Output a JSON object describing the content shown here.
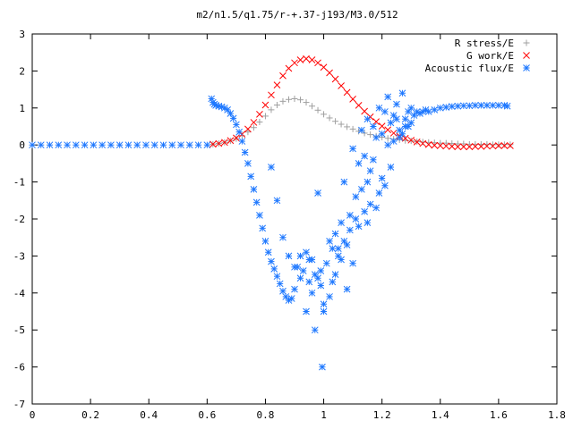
{
  "chart_data": {
    "type": "scatter",
    "title": "m2/n1.5/q1.75/r-+.37-j193/M3.0/512",
    "xlabel": "",
    "ylabel": "",
    "xlim": [
      0,
      1.8
    ],
    "ylim": [
      -7,
      3
    ],
    "x_ticks": [
      0,
      0.2,
      0.4,
      0.6,
      0.8,
      1,
      1.2,
      1.4,
      1.6,
      1.8
    ],
    "x_tick_labels": [
      "0",
      "0.2",
      "0.4",
      "0.6",
      "0.8",
      "1",
      "1.2",
      "1.4",
      "1.6",
      "1.8"
    ],
    "y_ticks": [
      3,
      2,
      1,
      0,
      -1,
      -2,
      -3,
      -4,
      -5,
      -6,
      -7
    ],
    "y_tick_labels": [
      "3",
      "2",
      "1",
      "0",
      "-1",
      "-2",
      "-3",
      "-4",
      "-5",
      "-6",
      "-7"
    ],
    "grid": false,
    "legend_position": "top-right",
    "series": [
      {
        "name": "R stress/E",
        "marker": "plus",
        "color": "#a0a0a0",
        "x": [
          0.62,
          0.64,
          0.66,
          0.68,
          0.7,
          0.72,
          0.74,
          0.76,
          0.78,
          0.8,
          0.82,
          0.84,
          0.86,
          0.88,
          0.9,
          0.92,
          0.94,
          0.96,
          0.98,
          1.0,
          1.02,
          1.04,
          1.06,
          1.08,
          1.1,
          1.12,
          1.14,
          1.16,
          1.18,
          1.2,
          1.22,
          1.24,
          1.26,
          1.28,
          1.3,
          1.32,
          1.34,
          1.36,
          1.38,
          1.4,
          1.42,
          1.44,
          1.46,
          1.48,
          1.5,
          1.52,
          1.54,
          1.56,
          1.58,
          1.6,
          1.62,
          1.64
        ],
        "y": [
          0.02,
          0.04,
          0.07,
          0.11,
          0.17,
          0.25,
          0.35,
          0.47,
          0.62,
          0.78,
          0.95,
          1.08,
          1.18,
          1.23,
          1.25,
          1.22,
          1.15,
          1.05,
          0.94,
          0.83,
          0.73,
          0.64,
          0.56,
          0.49,
          0.43,
          0.37,
          0.32,
          0.28,
          0.24,
          0.21,
          0.18,
          0.16,
          0.14,
          0.12,
          0.11,
          0.09,
          0.08,
          0.07,
          0.06,
          0.05,
          0.05,
          0.04,
          0.03,
          0.03,
          0.02,
          0.02,
          0.02,
          0.02,
          0.01,
          0.01,
          0.01,
          0.01
        ]
      },
      {
        "name": "G work/E",
        "marker": "cross",
        "color": "#ff0000",
        "x": [
          0.62,
          0.64,
          0.66,
          0.68,
          0.7,
          0.72,
          0.74,
          0.76,
          0.78,
          0.8,
          0.82,
          0.84,
          0.86,
          0.88,
          0.9,
          0.92,
          0.94,
          0.96,
          0.98,
          1.0,
          1.02,
          1.04,
          1.06,
          1.08,
          1.1,
          1.12,
          1.14,
          1.16,
          1.18,
          1.2,
          1.22,
          1.24,
          1.26,
          1.28,
          1.3,
          1.32,
          1.34,
          1.36,
          1.38,
          1.4,
          1.42,
          1.44,
          1.46,
          1.48,
          1.5,
          1.52,
          1.54,
          1.56,
          1.58,
          1.6,
          1.62,
          1.64
        ],
        "y": [
          0.02,
          0.04,
          0.07,
          0.12,
          0.19,
          0.29,
          0.43,
          0.61,
          0.83,
          1.08,
          1.35,
          1.62,
          1.87,
          2.07,
          2.22,
          2.3,
          2.33,
          2.3,
          2.22,
          2.1,
          1.95,
          1.78,
          1.6,
          1.42,
          1.24,
          1.07,
          0.91,
          0.76,
          0.63,
          0.51,
          0.41,
          0.32,
          0.24,
          0.18,
          0.13,
          0.08,
          0.04,
          0.01,
          -0.01,
          -0.02,
          -0.03,
          -0.04,
          -0.05,
          -0.05,
          -0.05,
          -0.04,
          -0.04,
          -0.03,
          -0.03,
          -0.02,
          -0.02,
          -0.02
        ]
      },
      {
        "name": "Acoustic flux/E",
        "marker": "star",
        "color": "#1e78ff",
        "x": [
          0.0,
          0.03,
          0.06,
          0.09,
          0.12,
          0.15,
          0.18,
          0.21,
          0.24,
          0.27,
          0.3,
          0.33,
          0.36,
          0.39,
          0.42,
          0.45,
          0.48,
          0.51,
          0.54,
          0.57,
          0.6,
          0.615,
          0.62,
          0.625,
          0.63,
          0.64,
          0.65,
          0.66,
          0.67,
          0.68,
          0.69,
          0.7,
          0.71,
          0.72,
          0.73,
          0.74,
          0.75,
          0.76,
          0.77,
          0.78,
          0.79,
          0.8,
          0.81,
          0.82,
          0.83,
          0.84,
          0.85,
          0.86,
          0.87,
          0.88,
          0.89,
          0.9,
          0.91,
          0.92,
          0.93,
          0.94,
          0.95,
          0.96,
          0.97,
          0.98,
          0.99,
          1.0,
          1.01,
          1.02,
          1.03,
          1.04,
          1.05,
          1.06,
          1.07,
          1.08,
          1.09,
          1.1,
          1.11,
          1.12,
          1.13,
          1.14,
          1.15,
          1.16,
          1.17,
          1.18,
          1.19,
          1.2,
          1.21,
          1.22,
          1.23,
          1.24,
          1.25,
          1.26,
          1.27,
          1.28,
          1.29,
          1.3,
          1.31,
          1.32,
          1.33,
          1.34,
          1.35,
          1.36,
          1.38,
          1.4,
          1.42,
          1.44,
          1.46,
          1.48,
          1.5,
          1.52,
          1.54,
          1.56,
          1.58,
          1.6,
          1.62,
          1.63,
          0.88,
          0.92,
          0.96,
          1.0,
          1.05,
          1.1,
          1.15,
          1.18,
          1.21,
          1.26,
          1.3,
          0.9,
          0.95,
          1.02,
          1.08,
          1.12,
          1.16,
          1.2,
          1.24,
          1.28,
          0.86,
          0.94,
          0.99,
          1.04,
          1.09,
          1.13,
          1.17,
          1.22,
          0.84,
          0.97,
          1.06,
          1.11,
          1.14,
          1.19,
          1.23,
          1.27,
          0.82,
          0.98,
          1.03,
          1.07,
          1.15,
          1.25,
          1.29,
          0.995
        ],
        "y": [
          0,
          0,
          0,
          0,
          0,
          0,
          0,
          0,
          0,
          0,
          0,
          0,
          0,
          0,
          0,
          0,
          0,
          0,
          0,
          0,
          0,
          1.25,
          1.15,
          1.1,
          1.07,
          1.05,
          1.03,
          1.0,
          0.95,
          0.85,
          0.72,
          0.55,
          0.35,
          0.1,
          -0.2,
          -0.5,
          -0.85,
          -1.2,
          -1.55,
          -1.9,
          -2.25,
          -2.6,
          -2.9,
          -3.15,
          -3.35,
          -3.55,
          -3.75,
          -3.95,
          -4.1,
          -4.2,
          -4.15,
          -3.9,
          -3.3,
          -3.0,
          -3.4,
          -4.5,
          -3.7,
          -3.1,
          -5.0,
          -3.6,
          -3.8,
          -4.3,
          -3.2,
          -2.6,
          -3.7,
          -2.4,
          -3.0,
          -2.1,
          -1.0,
          -2.7,
          -1.9,
          -0.1,
          -1.4,
          -0.5,
          0.4,
          -0.3,
          0.7,
          -0.7,
          0.5,
          0.2,
          1.0,
          0.3,
          0.9,
          1.3,
          0.6,
          0.8,
          1.1,
          0.4,
          1.4,
          0.7,
          0.9,
          1.0,
          0.8,
          0.9,
          0.85,
          0.9,
          0.95,
          0.9,
          0.95,
          1.0,
          1.02,
          1.04,
          1.05,
          1.06,
          1.06,
          1.07,
          1.07,
          1.07,
          1.07,
          1.07,
          1.07,
          1.05,
          -3.0,
          -3.6,
          -4.0,
          -4.5,
          -2.8,
          -3.2,
          -2.1,
          -1.7,
          -1.1,
          0.2,
          0.6,
          -3.3,
          -3.1,
          -4.1,
          -3.9,
          -2.2,
          -1.6,
          -0.9,
          0.1,
          0.5,
          -2.5,
          -2.9,
          -3.4,
          -3.5,
          -2.3,
          -1.2,
          -0.4,
          0.0,
          -1.5,
          -3.5,
          -3.1,
          -2.0,
          -1.8,
          -1.3,
          -0.6,
          0.3,
          -0.6,
          -1.3,
          -2.8,
          -2.6,
          -1.0,
          0.7,
          0.5,
          -6.0
        ]
      }
    ]
  }
}
